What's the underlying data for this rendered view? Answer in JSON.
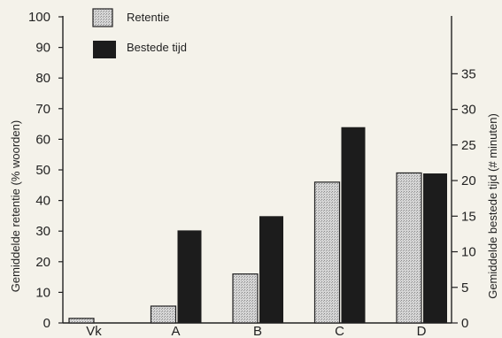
{
  "chart_data": {
    "type": "bar",
    "categories": [
      "Vk",
      "A",
      "B",
      "C",
      "D"
    ],
    "series": [
      {
        "name": "Retentie",
        "axis": "left",
        "values": [
          1.5,
          5.5,
          16,
          46,
          49
        ],
        "color": "#cfcfcf",
        "pattern": "stippled"
      },
      {
        "name": "Bestede tijd",
        "axis": "right",
        "values": [
          0,
          13,
          15,
          27.5,
          21
        ],
        "color": "#1c1c1c"
      }
    ],
    "ylabel": "Gemiddelde retentie (% woorden)",
    "ylim": [
      0,
      100
    ],
    "yticks": [
      0,
      10,
      20,
      30,
      40,
      50,
      60,
      70,
      80,
      90,
      100
    ],
    "y2label": "Gemiddelde bestede tijd (# minuten)",
    "y2lim": [
      0,
      43
    ],
    "y2ticks": [
      0,
      5,
      10,
      15,
      20,
      25,
      30,
      35
    ],
    "legend_position": "top-left",
    "grid": false
  }
}
